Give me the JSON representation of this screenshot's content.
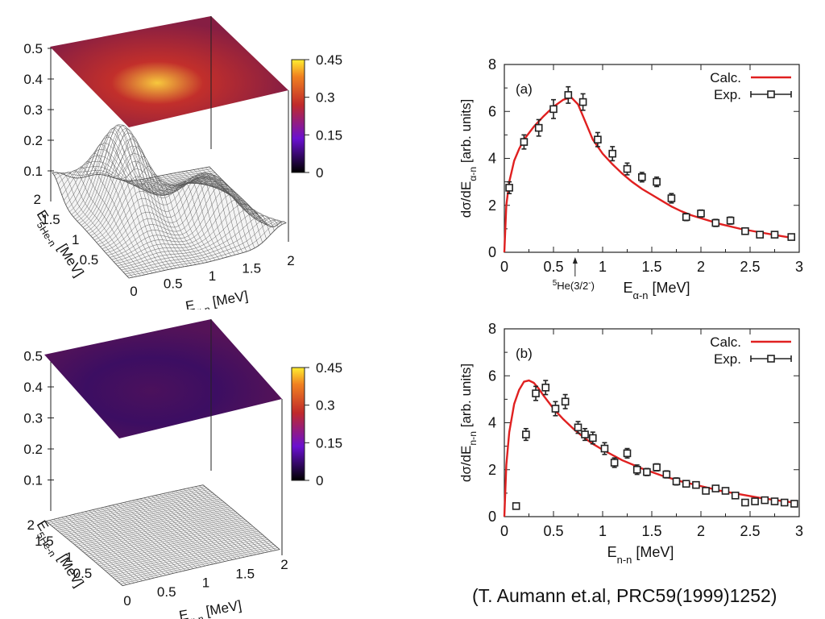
{
  "citation": "(T. Aumann et.al, PRC59(1999)1252)",
  "surface_plots": [
    {
      "id": "surface-upper",
      "z_ticks": [
        "0.1",
        "0.2",
        "0.3",
        "0.4",
        "0.5"
      ],
      "colorbar_ticks": [
        "0",
        "0.15",
        "0.3",
        "0.45"
      ],
      "x_ticks": [
        "0",
        "0.5",
        "1",
        "1.5",
        "2"
      ],
      "y_ticks": [
        "0.5",
        "1",
        "1.5",
        "2"
      ],
      "x_label": "Eα-n [MeV]",
      "y_label": "E5He-n [MeV]",
      "heatmap_peak": 0.42,
      "colors": {
        "low": "#2a0a6a",
        "mid": "#c02a2a",
        "high": "#ffe040"
      }
    },
    {
      "id": "surface-lower",
      "z_ticks": [
        "0.1",
        "0.2",
        "0.3",
        "0.4",
        "0.5"
      ],
      "colorbar_ticks": [
        "0",
        "0.15",
        "0.3",
        "0.45"
      ],
      "x_ticks": [
        "0",
        "0.5",
        "1",
        "1.5",
        "2"
      ],
      "y_ticks": [
        "0.5",
        "1",
        "1.5",
        "2"
      ],
      "x_label": "Eα-n [MeV]",
      "y_label": "E5He-n [MeV]",
      "heatmap_peak": 0.05,
      "colors": {
        "low": "#2a0a6a",
        "mid": "#c02a2a",
        "high": "#ffe040"
      }
    }
  ],
  "chart_data": [
    {
      "type": "line",
      "panel_label": "(a)",
      "xlim": [
        0,
        3
      ],
      "ylim": [
        0,
        8
      ],
      "x_ticks": [
        "0",
        "0.5",
        "1",
        "1.5",
        "2",
        "2.5",
        "3"
      ],
      "y_ticks": [
        "0",
        "2",
        "4",
        "6",
        "8"
      ],
      "xlabel": "Eα-n [MeV]",
      "ylabel": "dσ/dEα-n [arb. units]",
      "annotation": "5He(3/2-)",
      "annotation_x": 0.72,
      "legend_position": "top-right",
      "series": [
        {
          "name": "Calc.",
          "kind": "line",
          "color": "#e02020",
          "x": [
            0,
            0.02,
            0.05,
            0.1,
            0.15,
            0.2,
            0.3,
            0.4,
            0.5,
            0.6,
            0.68,
            0.75,
            0.8,
            0.9,
            1.0,
            1.1,
            1.2,
            1.3,
            1.4,
            1.5,
            1.6,
            1.7,
            1.8,
            1.9,
            2.0,
            2.2,
            2.4,
            2.6,
            2.8,
            2.95
          ],
          "y": [
            0,
            2.0,
            3.0,
            3.9,
            4.4,
            4.8,
            5.35,
            5.8,
            6.2,
            6.5,
            6.6,
            6.3,
            5.8,
            4.8,
            4.2,
            3.75,
            3.35,
            3.0,
            2.7,
            2.45,
            2.2,
            1.95,
            1.75,
            1.58,
            1.45,
            1.2,
            1.0,
            0.85,
            0.7,
            0.6
          ]
        },
        {
          "name": "Exp.",
          "kind": "points",
          "color": "#222222",
          "x": [
            0.05,
            0.2,
            0.35,
            0.5,
            0.65,
            0.8,
            0.95,
            1.1,
            1.25,
            1.4,
            1.55,
            1.7,
            1.85,
            2.0,
            2.15,
            2.3,
            2.45,
            2.6,
            2.75,
            2.92
          ],
          "y": [
            2.75,
            4.7,
            5.3,
            6.1,
            6.7,
            6.4,
            4.8,
            4.2,
            3.55,
            3.2,
            3.0,
            2.3,
            1.5,
            1.65,
            1.25,
            1.35,
            0.9,
            0.75,
            0.75,
            0.65
          ],
          "err": [
            0.25,
            0.3,
            0.35,
            0.4,
            0.35,
            0.35,
            0.3,
            0.3,
            0.25,
            0.2,
            0.2,
            0.2,
            0.15,
            0.15,
            0.15,
            0.15,
            0.1,
            0.1,
            0.1,
            0.1
          ]
        }
      ]
    },
    {
      "type": "line",
      "panel_label": "(b)",
      "xlim": [
        0,
        3
      ],
      "ylim": [
        0,
        8
      ],
      "x_ticks": [
        "0",
        "0.5",
        "1",
        "1.5",
        "2",
        "2.5",
        "3"
      ],
      "y_ticks": [
        "0",
        "2",
        "4",
        "6",
        "8"
      ],
      "xlabel": "En-n [MeV]",
      "ylabel": "dσ/dEn-n [arb. units]",
      "legend_position": "top-right",
      "series": [
        {
          "name": "Calc.",
          "kind": "line",
          "color": "#e02020",
          "x": [
            0,
            0.02,
            0.05,
            0.1,
            0.15,
            0.2,
            0.25,
            0.3,
            0.35,
            0.4,
            0.5,
            0.6,
            0.7,
            0.8,
            0.9,
            1.0,
            1.2,
            1.4,
            1.6,
            1.8,
            2.0,
            2.2,
            2.4,
            2.6,
            2.8,
            2.95
          ],
          "y": [
            0,
            2.2,
            3.6,
            4.8,
            5.4,
            5.75,
            5.8,
            5.7,
            5.45,
            5.15,
            4.6,
            4.15,
            3.75,
            3.4,
            3.1,
            2.85,
            2.4,
            2.05,
            1.75,
            1.5,
            1.3,
            1.1,
            0.95,
            0.8,
            0.68,
            0.6
          ]
        },
        {
          "name": "Exp.",
          "kind": "points",
          "color": "#222222",
          "x": [
            0.12,
            0.22,
            0.32,
            0.42,
            0.52,
            0.62,
            0.75,
            0.82,
            0.9,
            1.02,
            1.12,
            1.25,
            1.35,
            1.45,
            1.55,
            1.65,
            1.75,
            1.85,
            1.95,
            2.05,
            2.15,
            2.25,
            2.35,
            2.45,
            2.55,
            2.65,
            2.75,
            2.85,
            2.95
          ],
          "y": [
            0.45,
            3.5,
            5.25,
            5.5,
            4.6,
            4.9,
            3.8,
            3.5,
            3.35,
            2.9,
            2.3,
            2.7,
            2.0,
            1.9,
            2.1,
            1.8,
            1.5,
            1.4,
            1.35,
            1.1,
            1.2,
            1.1,
            0.9,
            0.6,
            0.65,
            0.7,
            0.65,
            0.6,
            0.55
          ],
          "err": [
            0.1,
            0.25,
            0.3,
            0.3,
            0.3,
            0.3,
            0.25,
            0.25,
            0.25,
            0.25,
            0.2,
            0.2,
            0.2,
            0.15,
            0.15,
            0.15,
            0.15,
            0.1,
            0.1,
            0.1,
            0.1,
            0.1,
            0.1,
            0.1,
            0.1,
            0.1,
            0.1,
            0.1,
            0.1
          ]
        }
      ]
    }
  ]
}
